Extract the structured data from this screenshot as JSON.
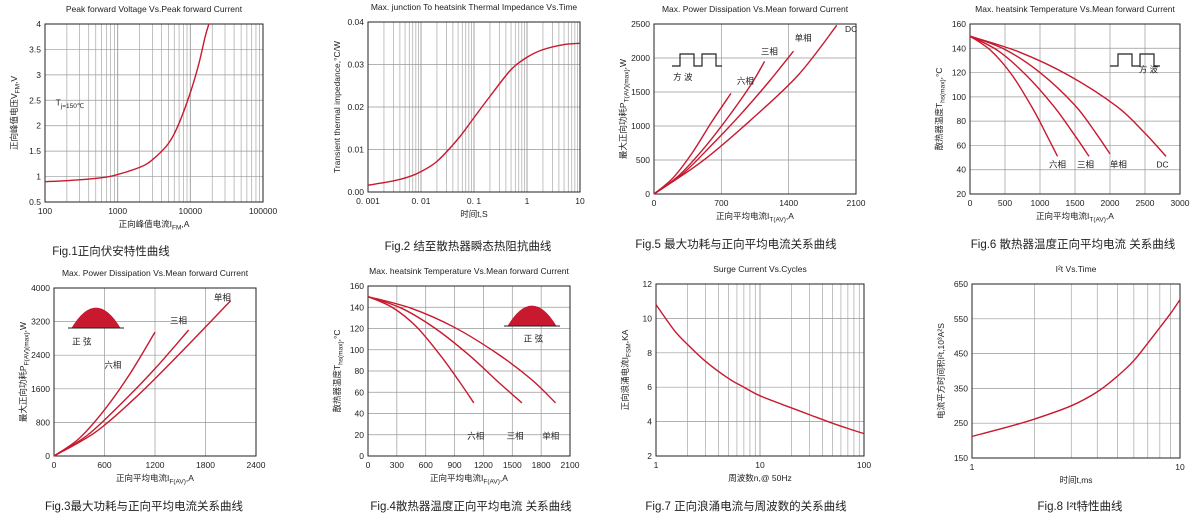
{
  "colors": {
    "curve": "#c8192e",
    "grid": "#999999",
    "axis": "#222222"
  },
  "chart_data": [
    {
      "type": "line",
      "title": "Peak forward Voltage Vs.Peak forward Current",
      "caption": "Fig.1正向伏安特性曲线",
      "xlabel": "正向峰值电流I_FM,A",
      "ylabel": "正向峰值电压V_FM,V",
      "xscale": "log",
      "xlim": [
        100,
        100000
      ],
      "ylim": [
        0.5,
        4
      ],
      "xticks": [
        100,
        1000,
        10000,
        100000
      ],
      "xtick_labels": [
        "100",
        "1000",
        "10000",
        "100000"
      ],
      "yticks": [
        0.5,
        1,
        1.5,
        2,
        2.5,
        3,
        3.5,
        4
      ],
      "ytick_labels": [
        "0.5",
        "1",
        "1.5",
        "2",
        "2.5",
        "3",
        "3.5",
        "4"
      ],
      "annotations": [
        {
          "text": "T_j=150℃",
          "x": 220,
          "y": 2.4
        }
      ],
      "series": [
        {
          "x": [
            100,
            200,
            400,
            700,
            1000,
            2000,
            3000,
            5000,
            7000,
            10000,
            13000,
            16000,
            18000
          ],
          "y": [
            0.9,
            0.92,
            0.95,
            0.99,
            1.04,
            1.18,
            1.33,
            1.65,
            2.05,
            2.65,
            3.2,
            3.75,
            4.0
          ]
        }
      ]
    },
    {
      "type": "line",
      "title": "Max. junction To heatsink Thermal Impedance Vs.Time",
      "caption": "Fig.2 结至散热器瞬态热阻抗曲线",
      "xlabel": "时间t,S",
      "ylabel": "Transient thermal impedance,°C/W",
      "xscale": "log",
      "xlim": [
        0.001,
        10
      ],
      "ylim": [
        0,
        0.04
      ],
      "xticks": [
        0.001,
        0.01,
        0.1,
        1,
        10
      ],
      "xtick_labels": [
        "0. 001",
        "0. 01",
        "0. 1",
        "1",
        "10"
      ],
      "yticks": [
        0,
        0.01,
        0.02,
        0.03,
        0.04
      ],
      "ytick_labels": [
        "0.00",
        "0.01",
        "0.02",
        "0.03",
        "0.04"
      ],
      "series": [
        {
          "x": [
            0.001,
            0.003,
            0.006,
            0.01,
            0.02,
            0.05,
            0.1,
            0.2,
            0.5,
            1,
            2,
            5,
            10
          ],
          "y": [
            0.0016,
            0.0026,
            0.0036,
            0.0048,
            0.0072,
            0.0125,
            0.0175,
            0.0225,
            0.0288,
            0.0317,
            0.0335,
            0.0347,
            0.035
          ]
        }
      ]
    },
    {
      "type": "line",
      "title": "Max. Power Dissipation Vs.Mean forward Current",
      "caption": "Fig.5 最大功耗与正向平均电流关系曲线",
      "xlabel": "正向平均电流I_T(AV),A",
      "ylabel": "最大正向功耗P_T(AV)(max),W",
      "xlim": [
        0,
        2100
      ],
      "ylim": [
        0,
        2500
      ],
      "xticks": [
        0,
        700,
        1400,
        2100
      ],
      "xtick_labels": [
        "0",
        "700",
        "1400",
        "2100"
      ],
      "yticks": [
        0,
        500,
        1000,
        1500,
        2000,
        2500
      ],
      "ytick_labels": [
        "0",
        "500",
        "1000",
        "1500",
        "2000",
        "2500"
      ],
      "annotations": [
        {
          "text": "方   波",
          "x": 300,
          "y": 1680
        },
        {
          "text": "六相",
          "x": 950,
          "y": 1620
        },
        {
          "text": "三相",
          "x": 1200,
          "y": 2050
        },
        {
          "text": "单相",
          "x": 1550,
          "y": 2250
        },
        {
          "text": "DC",
          "x": 2050,
          "y": 2380
        }
      ],
      "series": [
        {
          "name": "六相",
          "x": [
            0,
            200,
            400,
            600,
            800
          ],
          "y": [
            0,
            240,
            610,
            1060,
            1480
          ]
        },
        {
          "name": "三相",
          "x": [
            0,
            250,
            500,
            750,
            1000,
            1150
          ],
          "y": [
            0,
            260,
            640,
            1090,
            1590,
            1950
          ]
        },
        {
          "name": "单相",
          "x": [
            0,
            300,
            600,
            900,
            1200,
            1450
          ],
          "y": [
            0,
            300,
            720,
            1170,
            1660,
            2100
          ]
        },
        {
          "name": "DC",
          "x": [
            0,
            500,
            1000,
            1500,
            1900
          ],
          "y": [
            0,
            480,
            1080,
            1750,
            2480
          ]
        }
      ]
    },
    {
      "type": "line",
      "title": "Max. heatsink Temperature Vs.Mean forward Current",
      "caption": "Fig.6 散热器温度正向平均电流  关系曲线",
      "xlabel": "正向平均电流I_T(AV),A",
      "ylabel": "散热器温度T_hs(max),°C",
      "xlim": [
        0,
        3000
      ],
      "ylim": [
        20,
        160
      ],
      "xticks": [
        0,
        500,
        1000,
        1500,
        2000,
        2500,
        3000
      ],
      "xtick_labels": [
        "0",
        "500",
        "1000",
        "1500",
        "2000",
        "2500",
        "3000"
      ],
      "yticks": [
        20,
        40,
        60,
        80,
        100,
        120,
        140,
        160
      ],
      "ytick_labels": [
        "20",
        "40",
        "60",
        "80",
        "100",
        "120",
        "140",
        "160"
      ],
      "annotations": [
        {
          "text": "方   波",
          "x": 2550,
          "y": 120
        },
        {
          "text": "六相",
          "x": 1250,
          "y": 42
        },
        {
          "text": "三相",
          "x": 1650,
          "y": 42
        },
        {
          "text": "单相",
          "x": 2120,
          "y": 42
        },
        {
          "text": "DC",
          "x": 2750,
          "y": 42
        }
      ],
      "series": [
        {
          "name": "六相",
          "x": [
            0,
            300,
            600,
            900,
            1100,
            1250
          ],
          "y": [
            150,
            138,
            118,
            90,
            68,
            51
          ]
        },
        {
          "name": "三相",
          "x": [
            0,
            400,
            800,
            1200,
            1500,
            1700
          ],
          "y": [
            150,
            138,
            118,
            92,
            68,
            51
          ]
        },
        {
          "name": "单相",
          "x": [
            0,
            500,
            1000,
            1500,
            1800,
            2000
          ],
          "y": [
            150,
            139,
            120,
            93,
            70,
            53
          ]
        },
        {
          "name": "DC",
          "x": [
            0,
            700,
            1400,
            2100,
            2500,
            2800
          ],
          "y": [
            150,
            137,
            118,
            92,
            70,
            51
          ]
        }
      ]
    },
    {
      "type": "line",
      "title": "Max. Power Dissipation Vs.Mean forward Current",
      "caption": "Fig.3最大功耗与正向平均电流关系曲线",
      "xlabel": "正向平均电流I_F(AV),A",
      "ylabel": "最大正向功耗P_F(AV)(max),W",
      "xlim": [
        0,
        2400
      ],
      "ylim": [
        0,
        4000
      ],
      "xticks": [
        0,
        600,
        1200,
        1800,
        2400
      ],
      "xtick_labels": [
        "0",
        "600",
        "1200",
        "1800",
        "2400"
      ],
      "yticks": [
        0,
        800,
        1600,
        2400,
        3200,
        4000
      ],
      "ytick_labels": [
        "0",
        "800",
        "1600",
        "2400",
        "3200",
        "4000"
      ],
      "annotations": [
        {
          "text": "正    弦",
          "x": 330,
          "y": 2660
        },
        {
          "text": "六相",
          "x": 700,
          "y": 2100
        },
        {
          "text": "三相",
          "x": 1480,
          "y": 3150
        },
        {
          "text": "单相",
          "x": 2000,
          "y": 3700
        }
      ],
      "series": [
        {
          "name": "六相",
          "x": [
            0,
            300,
            600,
            900,
            1200
          ],
          "y": [
            0,
            420,
            1100,
            1950,
            2950
          ]
        },
        {
          "name": "三相",
          "x": [
            0,
            400,
            800,
            1200,
            1600
          ],
          "y": [
            0,
            500,
            1250,
            2080,
            3000
          ]
        },
        {
          "name": "单相",
          "x": [
            0,
            500,
            1000,
            1500,
            2100
          ],
          "y": [
            0,
            580,
            1450,
            2450,
            3700
          ]
        }
      ]
    },
    {
      "type": "line",
      "title": "Max. heatsink Temperature Vs.Mean forward Current",
      "caption": "Fig.4散热器温度正向平均电流  关系曲线",
      "xlabel": "正向平均电流I_F(AV),A",
      "ylabel": "散热器温度T_hs(max),°C",
      "xlim": [
        0,
        2100
      ],
      "ylim": [
        0,
        160
      ],
      "xticks": [
        0,
        300,
        600,
        900,
        1200,
        1500,
        1800,
        2100
      ],
      "xtick_labels": [
        "0",
        "300",
        "600",
        "900",
        "1200",
        "1500",
        "1800",
        "2100"
      ],
      "yticks": [
        0,
        20,
        40,
        60,
        80,
        100,
        120,
        140,
        160
      ],
      "ytick_labels": [
        "0",
        "20",
        "40",
        "60",
        "80",
        "100",
        "120",
        "140",
        "160"
      ],
      "annotations": [
        {
          "text": "正    弦",
          "x": 1720,
          "y": 108
        },
        {
          "text": "六相",
          "x": 1120,
          "y": 16
        },
        {
          "text": "三相",
          "x": 1530,
          "y": 16
        },
        {
          "text": "单相",
          "x": 1900,
          "y": 16
        }
      ],
      "series": [
        {
          "name": "六相",
          "x": [
            0,
            250,
            500,
            750,
            950,
            1100
          ],
          "y": [
            150,
            140,
            122,
            95,
            70,
            50
          ]
        },
        {
          "name": "三相",
          "x": [
            0,
            350,
            700,
            1050,
            1350,
            1600
          ],
          "y": [
            150,
            139,
            120,
            95,
            70,
            50
          ]
        },
        {
          "name": "单相",
          "x": [
            0,
            450,
            900,
            1350,
            1700,
            1950
          ],
          "y": [
            150,
            139,
            121,
            96,
            72,
            50
          ]
        }
      ]
    },
    {
      "type": "line",
      "title": "Surge Current Vs.Cycles",
      "caption": "Fig.7 正向浪涌电流与周波数的关系曲线",
      "xlabel": "周波数n,@ 50Hz",
      "ylabel": "正向浪涌电流I_FSM,KA",
      "xscale": "log",
      "xlim": [
        1,
        100
      ],
      "ylim": [
        2,
        12
      ],
      "xticks": [
        1,
        10,
        100
      ],
      "xtick_labels": [
        "1",
        "10",
        "100"
      ],
      "yticks": [
        2,
        4,
        6,
        8,
        10,
        12
      ],
      "ytick_labels": [
        "2",
        "4",
        "6",
        "8",
        "10",
        "12"
      ],
      "series": [
        {
          "x": [
            1,
            1.5,
            2,
            3,
            5,
            7,
            10,
            20,
            30,
            50,
            70,
            100
          ],
          "y": [
            10.8,
            9.3,
            8.5,
            7.5,
            6.5,
            6.0,
            5.5,
            4.8,
            4.4,
            3.9,
            3.6,
            3.3
          ]
        }
      ]
    },
    {
      "type": "line",
      "title": "I²t Vs.Time",
      "caption": "Fig.8 I²t特性曲线",
      "xlabel": "时间t,ms",
      "ylabel": "电流平方时间积I²t,10³A²S",
      "xscale": "log",
      "xlim": [
        1,
        10
      ],
      "ylim": [
        150,
        650
      ],
      "xticks": [
        1,
        10
      ],
      "xtick_labels": [
        "1",
        "10"
      ],
      "yticks": [
        150,
        250,
        350,
        450,
        550,
        650
      ],
      "ytick_labels": [
        "150",
        "250",
        "350",
        "450",
        "550",
        "650"
      ],
      "series": [
        {
          "x": [
            1,
            1.5,
            2,
            3,
            4,
            5,
            6,
            7,
            8,
            9,
            10
          ],
          "y": [
            212,
            240,
            262,
            300,
            340,
            385,
            430,
            480,
            525,
            565,
            605
          ]
        }
      ]
    }
  ]
}
